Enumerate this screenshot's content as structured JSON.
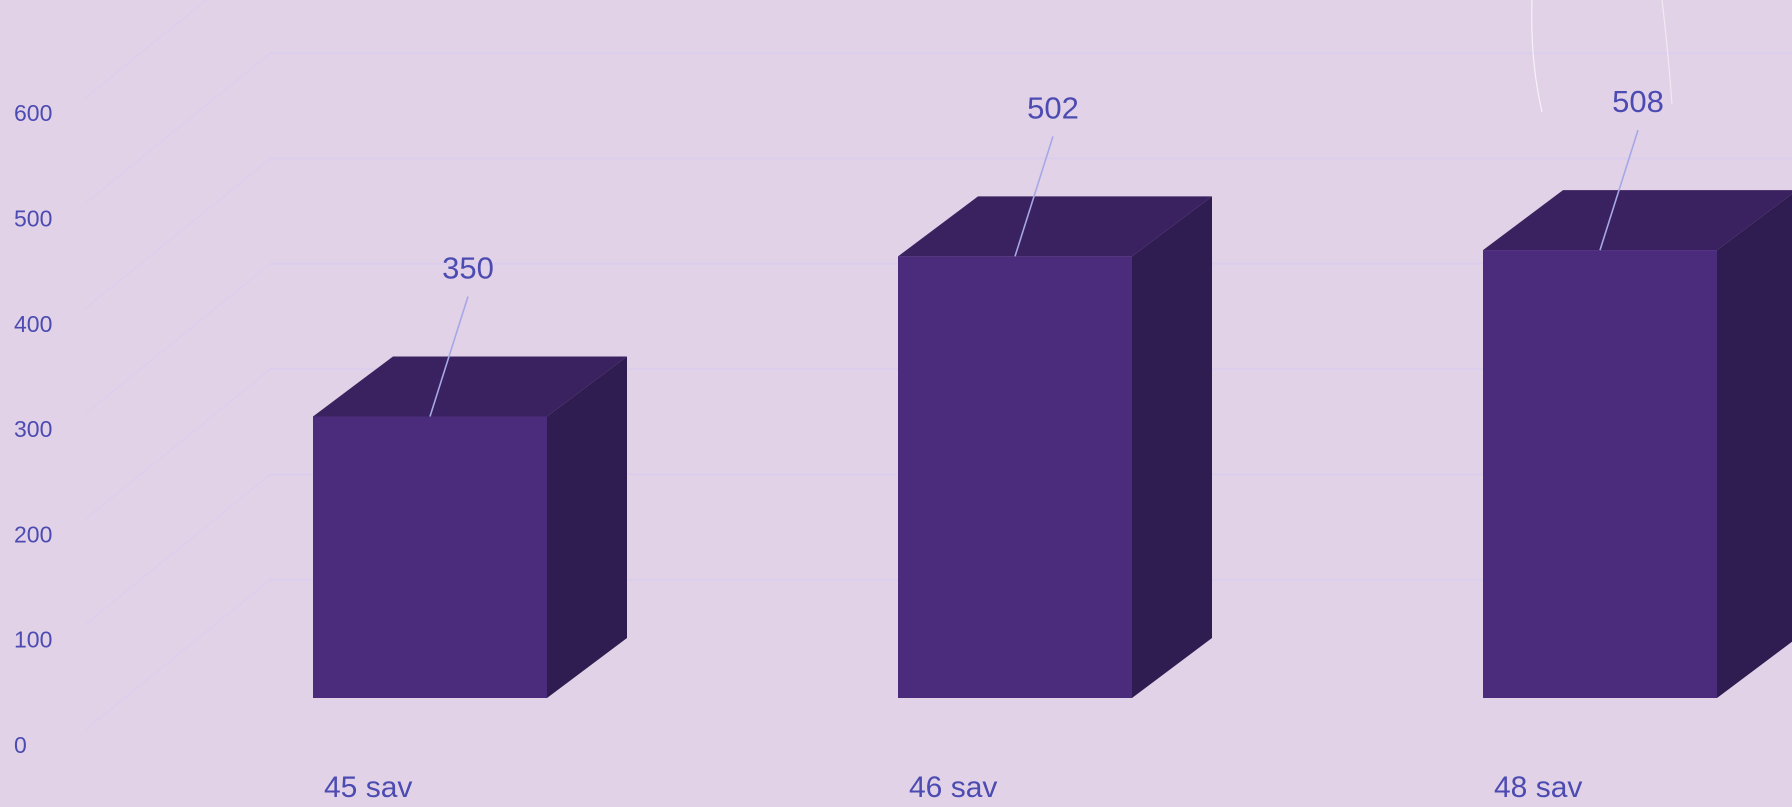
{
  "chart_data": {
    "type": "bar",
    "categories": [
      "45 sav",
      "46 sav",
      "48 sav"
    ],
    "values": [
      350,
      502,
      508
    ],
    "ylim": [
      0,
      600
    ],
    "yticks": [
      0,
      100,
      200,
      300,
      400,
      500,
      600
    ],
    "grid": true,
    "three_d": true,
    "colors": {
      "background": "#e2d2e8",
      "bar_front": "#4a2b7c",
      "bar_top": "#3a215f",
      "bar_side": "#2f1c50",
      "label_text": "#4b4bb1",
      "grid": "#d8cdf0",
      "leader_line": "#a6a8e6"
    }
  }
}
